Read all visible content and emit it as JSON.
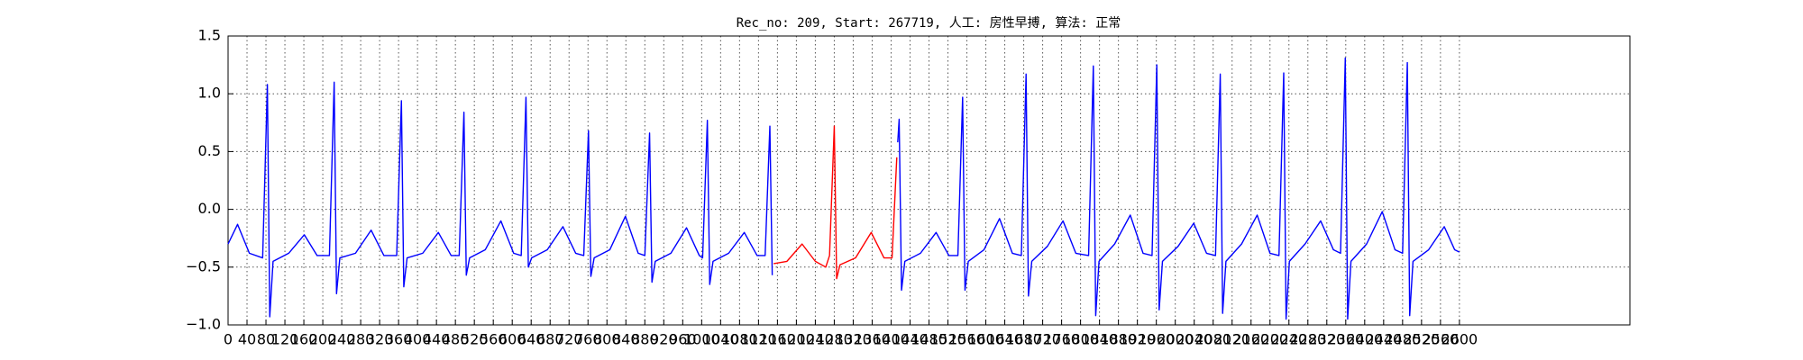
{
  "chart_data": {
    "type": "line",
    "title": "Rec_no: 209, Start: 267719, 人工: 房性早搏, 算法: 正常",
    "xlim": [
      0,
      2960
    ],
    "ylim": [
      -1,
      1.5
    ],
    "xticks": [
      0,
      40,
      80,
      120,
      160,
      200,
      240,
      280,
      320,
      360,
      400,
      440,
      480,
      520,
      560,
      600,
      640,
      680,
      720,
      760,
      800,
      840,
      880,
      920,
      960,
      1000,
      1040,
      1080,
      1120,
      1160,
      1200,
      1240,
      1280,
      1320,
      1360,
      1400,
      1440,
      1480,
      1520,
      1560,
      1600,
      1640,
      1680,
      1720,
      1760,
      1800,
      1840,
      1880,
      1920,
      1960,
      2000,
      2040,
      2080,
      2120,
      2160,
      2200,
      2240,
      2280,
      2320,
      2360,
      2400,
      2440,
      2480,
      2520,
      2560,
      2600
    ],
    "yticks": [
      {
        "value": -1,
        "label": "−1.0"
      },
      {
        "value": -0.5,
        "label": "−0.5"
      },
      {
        "value": 0,
        "label": "0.0"
      },
      {
        "value": 0.5,
        "label": "0.5"
      },
      {
        "value": 1,
        "label": "1.0"
      },
      {
        "value": 1.5,
        "label": "1.5"
      }
    ],
    "grid": true,
    "series": [
      {
        "color": "#0000ff",
        "x": [
          0,
          20,
          45,
          73,
          83,
          88,
          95,
          128,
          161,
          188,
          214,
          224,
          229,
          236,
          269,
          302,
          329,
          356,
          366,
          371,
          378,
          411,
          444,
          471,
          488,
          498,
          503,
          510,
          543,
          576,
          603,
          619,
          629,
          634,
          641,
          674,
          707,
          734,
          751,
          761,
          766,
          773,
          806,
          839,
          866,
          880,
          890,
          895,
          902,
          935,
          968,
          995,
          1002,
          1012,
          1017,
          1024,
          1057,
          1090,
          1117,
          1134,
          1144,
          1149,
          1280,
          1414,
          1417,
          1422,
          1429,
          1462,
          1495,
          1522,
          1541,
          1551,
          1556,
          1563,
          1596,
          1629,
          1656,
          1675,
          1685,
          1690,
          1697,
          1730,
          1763,
          1790,
          1817,
          1827,
          1832,
          1839,
          1872,
          1905,
          1932,
          1951,
          1961,
          1966,
          1973,
          2006,
          2039,
          2066,
          2085,
          2095,
          2100,
          2107,
          2140,
          2173,
          2200,
          2219,
          2229,
          2234,
          2241,
          2274,
          2307,
          2334,
          2349,
          2359,
          2364,
          2371,
          2404,
          2437,
          2464,
          2480,
          2490,
          2495,
          2502,
          2535,
          2568,
          2590,
          2600
        ],
        "values": [
          -0.3,
          -0.13,
          -0.38,
          -0.42,
          1.08,
          -0.93,
          -0.45,
          -0.38,
          -0.22,
          -0.4,
          -0.4,
          1.1,
          -0.73,
          -0.42,
          -0.38,
          -0.18,
          -0.4,
          -0.4,
          0.94,
          -0.67,
          -0.42,
          -0.38,
          -0.2,
          -0.4,
          -0.4,
          0.84,
          -0.57,
          -0.42,
          -0.35,
          -0.1,
          -0.38,
          -0.4,
          0.97,
          -0.5,
          -0.42,
          -0.35,
          -0.15,
          -0.38,
          -0.4,
          0.68,
          -0.58,
          -0.42,
          -0.35,
          -0.06,
          -0.38,
          -0.4,
          0.66,
          -0.63,
          -0.45,
          -0.38,
          -0.16,
          -0.4,
          -0.42,
          0.77,
          -0.65,
          -0.45,
          -0.38,
          -0.2,
          -0.4,
          -0.4,
          0.72,
          -0.57,
          null,
          0.58,
          0.78,
          -0.7,
          -0.45,
          -0.38,
          -0.2,
          -0.4,
          -0.4,
          0.97,
          -0.7,
          -0.45,
          -0.35,
          -0.08,
          -0.38,
          -0.4,
          1.17,
          -0.75,
          -0.45,
          -0.32,
          -0.1,
          -0.38,
          -0.4,
          1.24,
          -0.92,
          -0.45,
          -0.3,
          -0.05,
          -0.38,
          -0.4,
          1.25,
          -0.87,
          -0.45,
          -0.32,
          -0.12,
          -0.38,
          -0.4,
          1.17,
          -0.9,
          -0.45,
          -0.3,
          -0.05,
          -0.38,
          -0.4,
          1.18,
          -0.95,
          -0.45,
          -0.3,
          -0.1,
          -0.35,
          -0.38,
          1.31,
          -0.95,
          -0.45,
          -0.3,
          -0.02,
          -0.35,
          -0.38,
          1.27,
          -0.92,
          -0.45,
          -0.35,
          -0.15,
          -0.35,
          -0.37
        ]
      },
      {
        "color": "#ff0000",
        "x": [
          1152,
          1180,
          1212,
          1240,
          1262,
          1270,
          1280,
          1285,
          1292,
          1325,
          1358,
          1385,
          1402,
          1412
        ],
        "values": [
          -0.47,
          -0.45,
          -0.3,
          -0.45,
          -0.5,
          -0.4,
          0.72,
          -0.6,
          -0.48,
          -0.42,
          -0.2,
          -0.42,
          -0.42,
          0.45
        ]
      }
    ]
  }
}
